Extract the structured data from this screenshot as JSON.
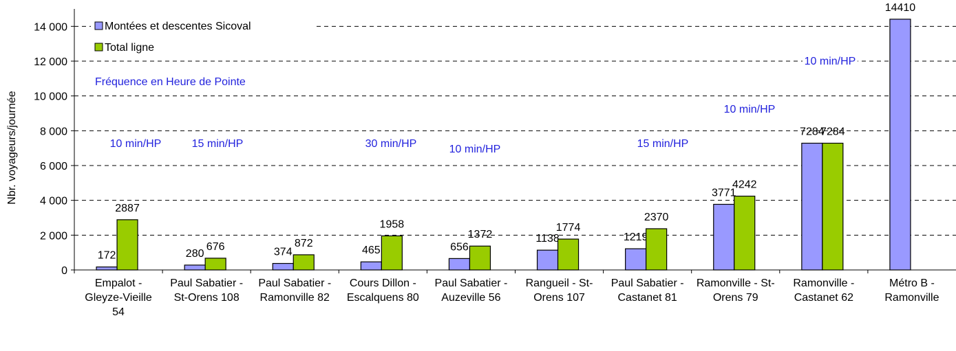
{
  "chart_data": {
    "type": "bar",
    "y_label": "Nbr. voyageurs/journée",
    "annotation": "Fréquence en Heure de Pointe",
    "frequency_labels": [
      "10 min/HP",
      "15 min/HP",
      "30 min/HP",
      "10 min/HP",
      "15 min/HP",
      "10 min/HP",
      "10 min/HP"
    ],
    "categories": [
      "Empalot - Gleyze-Vieille 54",
      "Paul Sabatier - St-Orens 108",
      "Paul Sabatier - Ramonville 82",
      "Cours Dillon - Escalquens 80",
      "Paul Sabatier - Auzeville 56",
      "Rangueil - St-Orens 107",
      "Paul Sabatier - Castanet 81",
      "Ramonville - St-Orens 79",
      "Ramonville - Castanet 62",
      "Métro B - Ramonville"
    ],
    "series": [
      {
        "name": "Montées et descentes Sicoval",
        "color": "#9999ff",
        "values": [
          172,
          280,
          374,
          465,
          656,
          1138,
          1219,
          3771,
          7284,
          14410
        ]
      },
      {
        "name": "Total ligne",
        "color": "#99cc00",
        "values": [
          2887,
          676,
          872,
          1958,
          1372,
          1774,
          2370,
          4242,
          7284,
          null
        ]
      }
    ],
    "ylim": [
      0,
      15000
    ],
    "yticks": [
      0,
      {
        "value": 2000,
        "label": "2 000"
      },
      {
        "value": 4000,
        "label": "4 000"
      },
      {
        "value": 6000,
        "label": "6 000"
      },
      {
        "value": 8000,
        "label": "8 000"
      },
      {
        "value": 10000,
        "label": "10 000"
      },
      {
        "value": 12000,
        "label": "12 000"
      },
      {
        "value": 14000,
        "label": "14 000"
      }
    ],
    "grid": true
  }
}
